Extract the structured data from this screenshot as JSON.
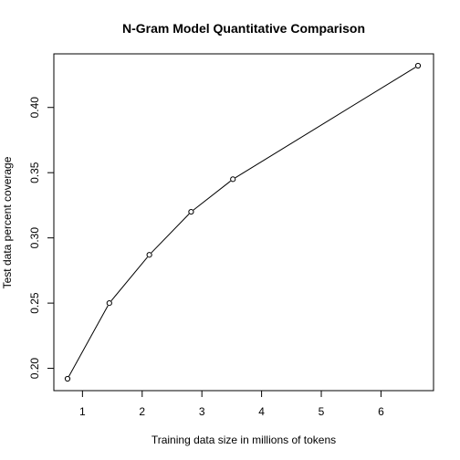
{
  "chart_data": {
    "type": "line",
    "title": "N-Gram Model Quantitative Comparison",
    "xlabel": "Training data size in millions of tokens",
    "ylabel": "Test data percent coverage",
    "xlim": [
      0.75,
      6.62
    ],
    "ylim": [
      0.192,
      0.432
    ],
    "x_ticks": [
      1,
      2,
      3,
      4,
      5,
      6
    ],
    "y_ticks": [
      0.2,
      0.25,
      0.3,
      0.35,
      0.4
    ],
    "x_tick_labels": [
      "1",
      "2",
      "3",
      "4",
      "5",
      "6"
    ],
    "y_tick_labels": [
      "0.20",
      "0.25",
      "0.30",
      "0.35",
      "0.40"
    ],
    "grid": false,
    "legend": "none",
    "line_color": "#000000",
    "marker": "open-circle",
    "series": [
      {
        "x": [
          0.75,
          1.45,
          2.12,
          2.82,
          3.52,
          6.62
        ],
        "y": [
          0.192,
          0.25,
          0.287,
          0.32,
          0.345,
          0.432
        ]
      }
    ]
  }
}
